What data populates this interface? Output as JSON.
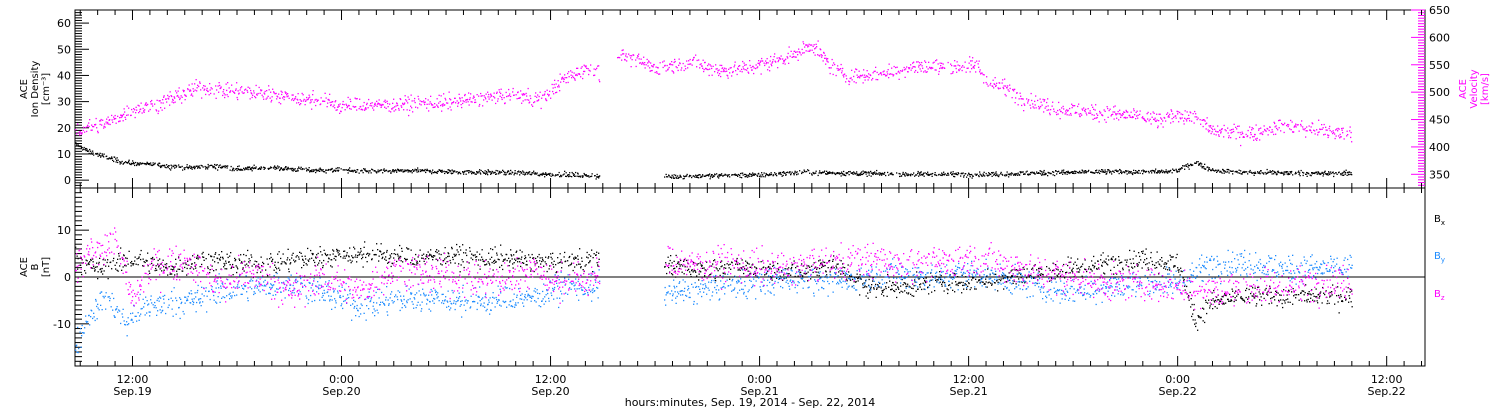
{
  "chart_data": {
    "type": "scatter",
    "xlabel": "hours:minutes, Sep. 19, 2014 - Sep. 22, 2014",
    "x_unit": "hours from Sep. 19 00:00",
    "xlim": [
      8.7,
      86.2
    ],
    "x_ticks": [
      {
        "hour": 12,
        "time": "12:00",
        "date": "Sep.19"
      },
      {
        "hour": 24,
        "time": "0:00",
        "date": "Sep.20"
      },
      {
        "hour": 36,
        "time": "12:00",
        "date": "Sep.20"
      },
      {
        "hour": 48,
        "time": "0:00",
        "date": "Sep.21"
      },
      {
        "hour": 60,
        "time": "12:00",
        "date": "Sep.21"
      },
      {
        "hour": 72,
        "time": "0:00",
        "date": "Sep.22"
      },
      {
        "hour": 84,
        "time": "12:00",
        "date": "Sep.22"
      }
    ],
    "panels": [
      {
        "id": "density-velocity",
        "left_axis": {
          "label_lines": [
            "ACE",
            "Ion Density",
            "[cm⁻³]"
          ],
          "ylim": [
            -3,
            65
          ],
          "ticks": [
            0,
            10,
            20,
            30,
            40,
            50,
            60
          ],
          "color": "#000000"
        },
        "right_axis": {
          "label_lines": [
            "ACE",
            "Velocity",
            "[km/s]"
          ],
          "ylim": [
            325,
            650
          ],
          "ticks": [
            350,
            400,
            450,
            500,
            550,
            600,
            650
          ],
          "color": "#ff00ff"
        },
        "series": [
          {
            "name": "Ion Density",
            "axis": "left",
            "color": "#000000",
            "spread": 0.9,
            "points": [
              [
                8.7,
                14
              ],
              [
                9.5,
                11
              ],
              [
                10.5,
                9
              ],
              [
                11.5,
                7
              ],
              [
                12.5,
                6.5
              ],
              [
                13.5,
                6
              ],
              [
                15,
                5
              ],
              [
                17,
                5.5
              ],
              [
                18,
                4.5
              ],
              [
                20,
                5
              ],
              [
                22,
                4
              ],
              [
                24,
                4
              ],
              [
                26,
                3.5
              ],
              [
                28,
                3.8
              ],
              [
                30,
                3.5
              ],
              [
                32,
                3.2
              ],
              [
                34,
                3
              ],
              [
                36,
                2.5
              ],
              [
                38.5,
                1.8
              ],
              [
                42.5,
                1.5
              ],
              [
                44,
                1.8
              ],
              [
                46,
                2
              ],
              [
                48,
                2.2
              ],
              [
                50,
                3
              ],
              [
                52,
                3
              ],
              [
                54,
                2.8
              ],
              [
                56,
                2.5
              ],
              [
                58,
                2.5
              ],
              [
                60,
                2.4
              ],
              [
                62,
                2.5
              ],
              [
                64,
                3
              ],
              [
                66,
                3.2
              ],
              [
                68,
                3.4
              ],
              [
                70,
                3.4
              ],
              [
                71.5,
                3.5
              ],
              [
                72,
                4
              ],
              [
                73,
                7
              ],
              [
                74,
                4
              ],
              [
                76,
                3
              ],
              [
                78,
                3
              ],
              [
                80,
                2.8
              ],
              [
                82,
                2.8
              ]
            ],
            "gaps": [
              [
                38.8,
                42.5
              ]
            ]
          },
          {
            "name": "Velocity",
            "axis": "right",
            "color": "#ff00ff",
            "spread": 14,
            "points": [
              [
                8.7,
                430
              ],
              [
                10.5,
                445
              ],
              [
                12,
                470
              ],
              [
                13.5,
                480
              ],
              [
                15,
                500
              ],
              [
                16,
                510
              ],
              [
                17,
                505
              ],
              [
                18.5,
                500
              ],
              [
                20,
                498
              ],
              [
                21.5,
                490
              ],
              [
                23,
                485
              ],
              [
                24,
                475
              ],
              [
                26,
                478
              ],
              [
                28,
                480
              ],
              [
                30,
                482
              ],
              [
                32,
                490
              ],
              [
                34,
                495
              ],
              [
                35.5,
                488
              ],
              [
                36.5,
                520
              ],
              [
                38,
                545
              ],
              [
                39,
                535
              ],
              [
                40,
                570
              ],
              [
                42,
                545
              ],
              [
                44,
                555
              ],
              [
                46,
                540
              ],
              [
                48,
                550
              ],
              [
                50,
                570
              ],
              [
                51,
                590
              ],
              [
                52,
                550
              ],
              [
                53,
                530
              ],
              [
                55,
                535
              ],
              [
                57,
                548
              ],
              [
                59,
                548
              ],
              [
                60.5,
                550
              ],
              [
                61,
                520
              ],
              [
                62,
                510
              ],
              [
                63,
                490
              ],
              [
                65,
                470
              ],
              [
                67,
                465
              ],
              [
                69,
                460
              ],
              [
                70,
                455
              ],
              [
                71,
                448
              ],
              [
                72,
                460
              ],
              [
                73,
                455
              ],
              [
                74,
                430
              ],
              [
                76,
                425
              ],
              [
                78,
                440
              ],
              [
                80,
                430
              ],
              [
                82,
                425
              ]
            ],
            "gaps": [
              [
                38.8,
                39.8
              ]
            ]
          }
        ]
      },
      {
        "id": "magnetic-field",
        "left_axis": {
          "label_lines": [
            "ACE",
            "B",
            "[nT]"
          ],
          "ylim": [
            -19,
            19
          ],
          "ticks": [
            -10,
            0,
            10
          ],
          "color": "#000000"
        },
        "zero_line": true,
        "legend_placement": "right",
        "series": [
          {
            "name": "B",
            "subscript": "x",
            "axis": "left",
            "color": "#000000",
            "spread": 2.2,
            "points": [
              [
                8.7,
                4
              ],
              [
                10,
                2
              ],
              [
                12,
                4
              ],
              [
                14,
                2
              ],
              [
                16,
                4
              ],
              [
                18,
                3
              ],
              [
                20,
                3
              ],
              [
                22,
                4
              ],
              [
                24,
                5
              ],
              [
                26,
                5
              ],
              [
                28,
                4
              ],
              [
                30,
                5
              ],
              [
                32,
                4
              ],
              [
                34,
                4
              ],
              [
                36,
                3
              ],
              [
                38.5,
                4
              ],
              [
                42.5,
                3
              ],
              [
                44,
                2
              ],
              [
                46,
                2
              ],
              [
                48,
                2
              ],
              [
                50,
                1
              ],
              [
                52,
                3
              ],
              [
                53,
                1
              ],
              [
                54,
                -2
              ],
              [
                56,
                -2
              ],
              [
                58,
                -1
              ],
              [
                60,
                -1
              ],
              [
                62,
                0
              ],
              [
                64,
                1
              ],
              [
                66,
                2
              ],
              [
                68,
                3
              ],
              [
                70,
                4
              ],
              [
                71.5,
                3
              ],
              [
                72,
                3
              ],
              [
                73,
                -9
              ],
              [
                74,
                -5
              ],
              [
                76,
                -4
              ],
              [
                78,
                -4
              ],
              [
                80,
                -4
              ],
              [
                82,
                -4
              ]
            ],
            "gaps": [
              [
                38.8,
                42.5
              ]
            ]
          },
          {
            "name": "B",
            "subscript": "y",
            "axis": "left",
            "color": "#1e8cff",
            "spread": 2.8,
            "points": [
              [
                8.7,
                -14
              ],
              [
                9.5,
                -8
              ],
              [
                10.5,
                -4
              ],
              [
                11.5,
                -10
              ],
              [
                13,
                -6
              ],
              [
                15,
                -5
              ],
              [
                17,
                -3
              ],
              [
                19,
                -2
              ],
              [
                21,
                -1
              ],
              [
                23,
                -3
              ],
              [
                25,
                -6
              ],
              [
                27,
                -5
              ],
              [
                29,
                -4
              ],
              [
                31,
                -5
              ],
              [
                33,
                -5
              ],
              [
                35,
                -4
              ],
              [
                36.5,
                -2
              ],
              [
                38.5,
                -2
              ],
              [
                42.5,
                -3
              ],
              [
                44,
                -3
              ],
              [
                46,
                -2
              ],
              [
                48,
                -1
              ],
              [
                50,
                0
              ],
              [
                52,
                -1
              ],
              [
                54,
                0
              ],
              [
                56,
                1
              ],
              [
                58,
                0
              ],
              [
                60,
                1
              ],
              [
                62,
                0
              ],
              [
                64,
                -2
              ],
              [
                66,
                -3
              ],
              [
                68,
                -2
              ],
              [
                70,
                -1
              ],
              [
                72,
                -1
              ],
              [
                74,
                3
              ],
              [
                76,
                3
              ],
              [
                78,
                2
              ],
              [
                80,
                2
              ],
              [
                82,
                2
              ]
            ],
            "gaps": [
              [
                38.8,
                42.5
              ]
            ]
          },
          {
            "name": "B",
            "subscript": "z",
            "axis": "left",
            "color": "#ff00ff",
            "spread": 3.6,
            "points": [
              [
                8.7,
                2
              ],
              [
                10,
                6
              ],
              [
                11,
                8
              ],
              [
                12,
                -5
              ],
              [
                13,
                2
              ],
              [
                15,
                4
              ],
              [
                17,
                -2
              ],
              [
                19,
                1
              ],
              [
                21,
                -3
              ],
              [
                23,
                0
              ],
              [
                25,
                -3
              ],
              [
                27,
                2
              ],
              [
                29,
                1
              ],
              [
                31,
                0
              ],
              [
                33,
                -1
              ],
              [
                35,
                2
              ],
              [
                36.5,
                -1
              ],
              [
                38.5,
                0
              ],
              [
                42.5,
                3
              ],
              [
                44,
                3
              ],
              [
                46,
                3
              ],
              [
                48,
                2
              ],
              [
                50,
                2
              ],
              [
                52,
                3
              ],
              [
                54,
                4
              ],
              [
                56,
                3
              ],
              [
                58,
                3
              ],
              [
                60,
                4
              ],
              [
                62,
                3
              ],
              [
                64,
                1
              ],
              [
                66,
                0
              ],
              [
                68,
                -1
              ],
              [
                70,
                -1
              ],
              [
                72,
                -2
              ],
              [
                74,
                -3
              ],
              [
                76,
                -2
              ],
              [
                78,
                -2
              ],
              [
                80,
                -1
              ],
              [
                82,
                -1
              ]
            ],
            "gaps": [
              [
                38.8,
                42.5
              ]
            ]
          }
        ]
      }
    ]
  }
}
